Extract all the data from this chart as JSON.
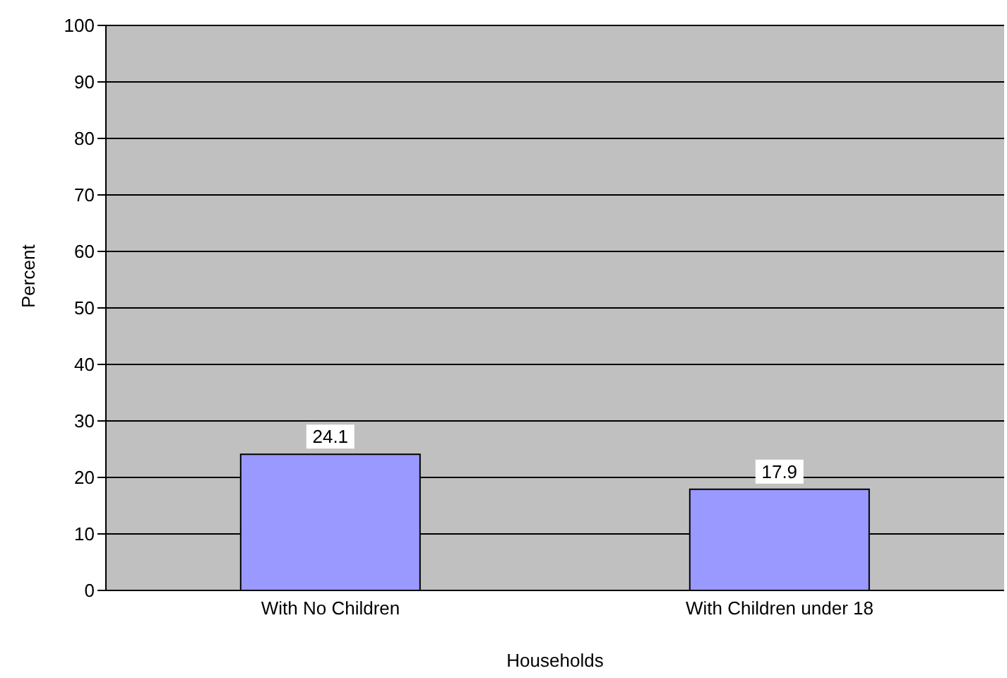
{
  "chart_data": {
    "type": "bar",
    "xlabel": "Households",
    "ylabel": "Percent",
    "categories": [
      "With No Children",
      "With Children under 18"
    ],
    "values": [
      24.1,
      17.9
    ],
    "color": "#9999ff",
    "ylim": [
      0,
      100
    ],
    "yticks": [
      0,
      10,
      20,
      30,
      40,
      50,
      60,
      70,
      80,
      90,
      100
    ],
    "grid": "y",
    "data_labels": true
  }
}
